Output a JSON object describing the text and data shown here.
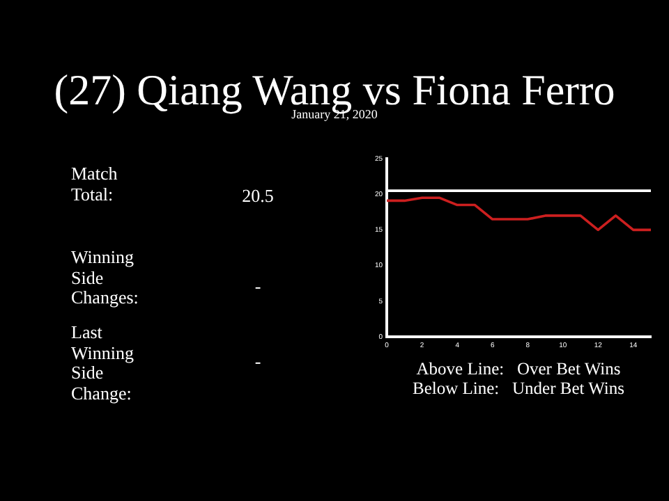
{
  "chart_data": [
    {
      "type": "other",
      "title": "(27) Qiang Wang vs Fiona Ferro",
      "subtitle": "January 21, 2020",
      "annotations": [
        "Match Total:",
        "20.5",
        "Winning Side Changes:",
        "-",
        "Last Winning Side Change:",
        "-"
      ]
    },
    {
      "type": "line",
      "x": [
        0,
        1,
        2,
        3,
        4,
        5,
        6,
        7,
        8,
        9,
        10,
        11,
        12,
        13,
        14,
        15
      ],
      "series": [
        {
          "color": "#cc1f1f",
          "values": [
            19.1,
            19.1,
            19.5,
            19.5,
            18.5,
            18.5,
            16.5,
            16.5,
            16.5,
            17,
            17,
            17,
            15,
            17,
            15,
            15
          ]
        }
      ],
      "xlim": [
        0,
        15
      ],
      "xticks": [
        0,
        2,
        4,
        6,
        8,
        10,
        12,
        14
      ],
      "ylim": [
        0,
        25
      ],
      "yticks": [
        0,
        5,
        10,
        15,
        20,
        25
      ],
      "ref_lines": [
        {
          "axis": "y",
          "value": 20.5,
          "color": "#ffffff"
        }
      ],
      "marker": "none",
      "legend": false,
      "grid": false,
      "annotations": [
        "Above Line:   Over Bet Wins",
        "Below Line:   Under Bet Wins"
      ]
    }
  ]
}
